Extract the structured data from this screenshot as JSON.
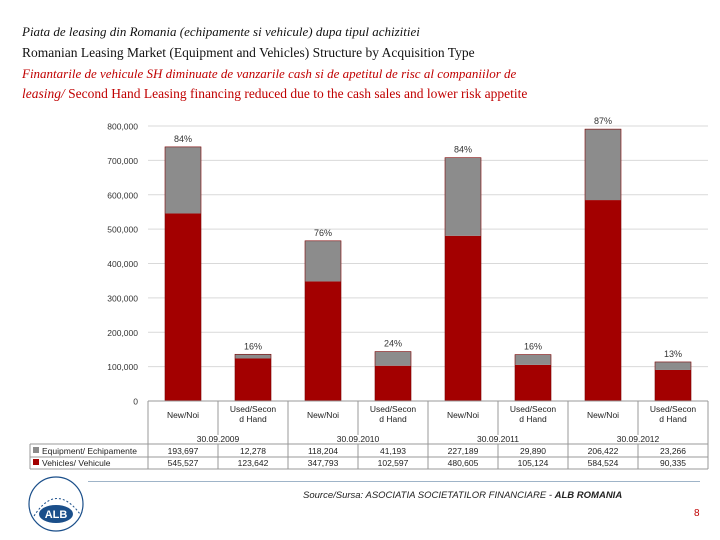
{
  "header": {
    "line1": "Piata de leasing din Romania (echipamente si vehicule) dupa tipul achizitiei",
    "line2": "Romanian Leasing Market (Equipment and Vehicles) Structure by Acquisition Type",
    "line3": "Finantarile de vehicule SH diminuate de vanzarile cash si de apetitul de risc al companiilor de",
    "line4_italic": "leasing/",
    "line4_rest": " Second Hand Leasing financing reduced due to the cash sales and lower risk appetite"
  },
  "colors": {
    "equipment": "#8c8c8c",
    "vehicles": "#a30000",
    "title_red": "#c00000"
  },
  "chart_data": {
    "type": "bar",
    "stacked": true,
    "ylim": [
      0,
      800000
    ],
    "yticks": [
      0,
      100000,
      200000,
      300000,
      400000,
      500000,
      600000,
      700000,
      800000
    ],
    "ytick_labels": [
      "0",
      "100,000",
      "200,000",
      "300,000",
      "400,000",
      "500,000",
      "600,000",
      "700,000",
      "800,000"
    ],
    "grid": true,
    "categories": [
      "New/Noi",
      "Used/Second Hand",
      "New/Noi",
      "Used/Second Hand",
      "New/Noi",
      "Used/Second Hand",
      "New/Noi",
      "Used/Second Hand"
    ],
    "category_lines": [
      [
        "New/Noi"
      ],
      [
        "Used/Secon",
        "d Hand"
      ],
      [
        "New/Noi"
      ],
      [
        "Used/Secon",
        "d Hand"
      ],
      [
        "New/Noi"
      ],
      [
        "Used/Secon",
        "d Hand"
      ],
      [
        "New/Noi"
      ],
      [
        "Used/Secon",
        "d Hand"
      ]
    ],
    "groups": [
      "30.09.2009",
      "30.09.2010",
      "30.09.2011",
      "30.09.2012"
    ],
    "series": [
      {
        "name": "Vehicles/ Vehicule",
        "values": [
          545527,
          123642,
          347793,
          102597,
          480605,
          105124,
          584524,
          90335
        ],
        "labels": [
          "545,527",
          "123,642",
          "347,793",
          "102,597",
          "480,605",
          "105,124",
          "584,524",
          "90,335"
        ]
      },
      {
        "name": "Equipment/ Echipamente",
        "values": [
          193697,
          12278,
          118204,
          41193,
          227189,
          29890,
          206422,
          23266
        ],
        "labels": [
          "193,697",
          "12,278",
          "118,204",
          "41,193",
          "227,189",
          "29,890",
          "206,422",
          "23,266"
        ]
      }
    ],
    "top_labels": [
      "84%",
      "16%",
      "76%",
      "24%",
      "84%",
      "16%",
      "87%",
      "13%"
    ]
  },
  "footer": {
    "source_prefix": "Source/Sursa: ASOCIATIA SOCIETATILOR FINANCIARE - ",
    "source_bold": "ALB ROMANIA",
    "page_number": "8",
    "logo_text": "ALB"
  }
}
